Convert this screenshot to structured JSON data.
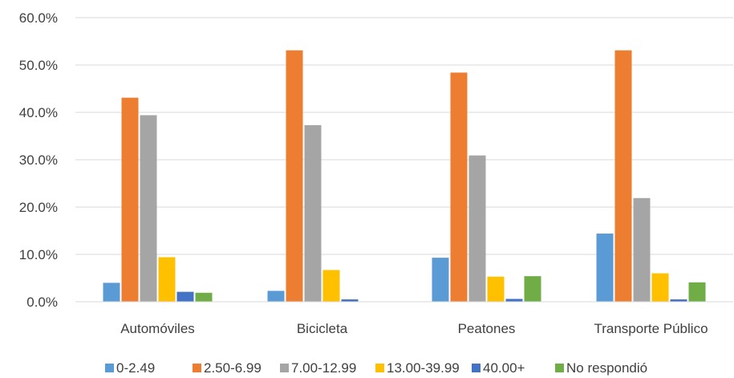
{
  "chart_data": {
    "type": "bar",
    "categories": [
      "Automóviles",
      "Bicicleta",
      "Peatones",
      "Transporte Público"
    ],
    "series": [
      {
        "name": "0-2.49",
        "color": "#5B9BD5",
        "values": [
          4.0,
          2.3,
          9.3,
          14.4
        ]
      },
      {
        "name": "2.50-6.99",
        "color": "#ED7D31",
        "values": [
          43.1,
          53.1,
          48.4,
          53.1
        ]
      },
      {
        "name": "7.00-12.99",
        "color": "#A5A5A5",
        "values": [
          39.4,
          37.3,
          30.9,
          21.9
        ]
      },
      {
        "name": "13.00-39.99",
        "color": "#FFC000",
        "values": [
          9.4,
          6.7,
          5.3,
          6.0
        ]
      },
      {
        "name": "40.00+",
        "color": "#4472C4",
        "values": [
          2.1,
          0.5,
          0.6,
          0.5
        ]
      },
      {
        "name": "No respondió",
        "color": "#70AD47",
        "values": [
          1.9,
          0.0,
          5.4,
          4.1
        ]
      }
    ],
    "yticks": [
      "0.0%",
      "10.0%",
      "20.0%",
      "30.0%",
      "40.0%",
      "50.0%",
      "60.0%"
    ],
    "ylim": [
      0,
      60
    ],
    "grid": true,
    "legend_position": "bottom"
  }
}
